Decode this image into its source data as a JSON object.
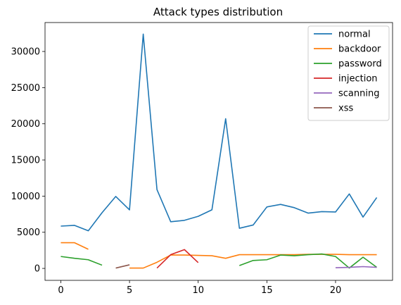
{
  "chart_data": {
    "type": "line",
    "title": "Attack types distribution",
    "xlabel": "",
    "ylabel": "",
    "xlim": [
      -1.15,
      24.15
    ],
    "ylim": [
      -1650,
      34000
    ],
    "xticks": [
      0,
      5,
      10,
      15,
      20
    ],
    "yticks": [
      0,
      5000,
      10000,
      15000,
      20000,
      25000,
      30000
    ],
    "grid": false,
    "legend_position": "top-right",
    "series": [
      {
        "name": "normal",
        "color": "#1f77b4",
        "points": [
          [
            0,
            5850
          ],
          [
            1,
            5950
          ],
          [
            2,
            5200
          ],
          [
            3,
            7700
          ],
          [
            4,
            9950
          ],
          [
            5,
            8100
          ],
          [
            6,
            32400
          ],
          [
            7,
            10900
          ],
          [
            8,
            6450
          ],
          [
            9,
            6650
          ],
          [
            10,
            7200
          ],
          [
            11,
            8100
          ],
          [
            12,
            20700
          ],
          [
            13,
            5550
          ],
          [
            14,
            6000
          ],
          [
            15,
            8500
          ],
          [
            16,
            8850
          ],
          [
            17,
            8400
          ],
          [
            18,
            7650
          ],
          [
            19,
            7850
          ],
          [
            20,
            7800
          ],
          [
            21,
            10300
          ],
          [
            22,
            7100
          ],
          [
            23,
            9800
          ]
        ]
      },
      {
        "name": "backdoor",
        "color": "#ff7f0e",
        "points": [
          [
            0,
            3550
          ],
          [
            1,
            3550
          ],
          [
            2,
            2650
          ],
          [
            null,
            null
          ],
          [
            5,
            50
          ],
          [
            6,
            50
          ],
          [
            7,
            850
          ],
          [
            8,
            1850
          ],
          [
            9,
            1850
          ],
          [
            10,
            1800
          ],
          [
            11,
            1750
          ],
          [
            12,
            1400
          ],
          [
            13,
            1900
          ],
          [
            14,
            1900
          ],
          [
            15,
            1900
          ],
          [
            16,
            1900
          ],
          [
            17,
            1900
          ],
          [
            18,
            1950
          ],
          [
            19,
            1950
          ],
          [
            20,
            1950
          ],
          [
            21,
            1900
          ],
          [
            22,
            1900
          ],
          [
            23,
            1900
          ]
        ]
      },
      {
        "name": "password",
        "color": "#2ca02c",
        "points": [
          [
            0,
            1650
          ],
          [
            1,
            1400
          ],
          [
            2,
            1200
          ],
          [
            3,
            450
          ],
          [
            null,
            null
          ],
          [
            13,
            400
          ],
          [
            14,
            1100
          ],
          [
            15,
            1200
          ],
          [
            16,
            1850
          ],
          [
            17,
            1750
          ],
          [
            18,
            1900
          ],
          [
            19,
            2000
          ],
          [
            20,
            1650
          ],
          [
            21,
            50
          ],
          [
            22,
            1550
          ],
          [
            23,
            150
          ]
        ]
      },
      {
        "name": "injection",
        "color": "#d62728",
        "points": [
          [
            7,
            50
          ],
          [
            8,
            1900
          ],
          [
            9,
            2600
          ],
          [
            10,
            800
          ]
        ]
      },
      {
        "name": "scanning",
        "color": "#9467bd",
        "points": [
          [
            20,
            100
          ],
          [
            21,
            150
          ],
          [
            22,
            250
          ],
          [
            23,
            150
          ]
        ]
      },
      {
        "name": "xss",
        "color": "#8c564b",
        "points": [
          [
            4,
            50
          ],
          [
            5,
            500
          ]
        ]
      }
    ]
  }
}
